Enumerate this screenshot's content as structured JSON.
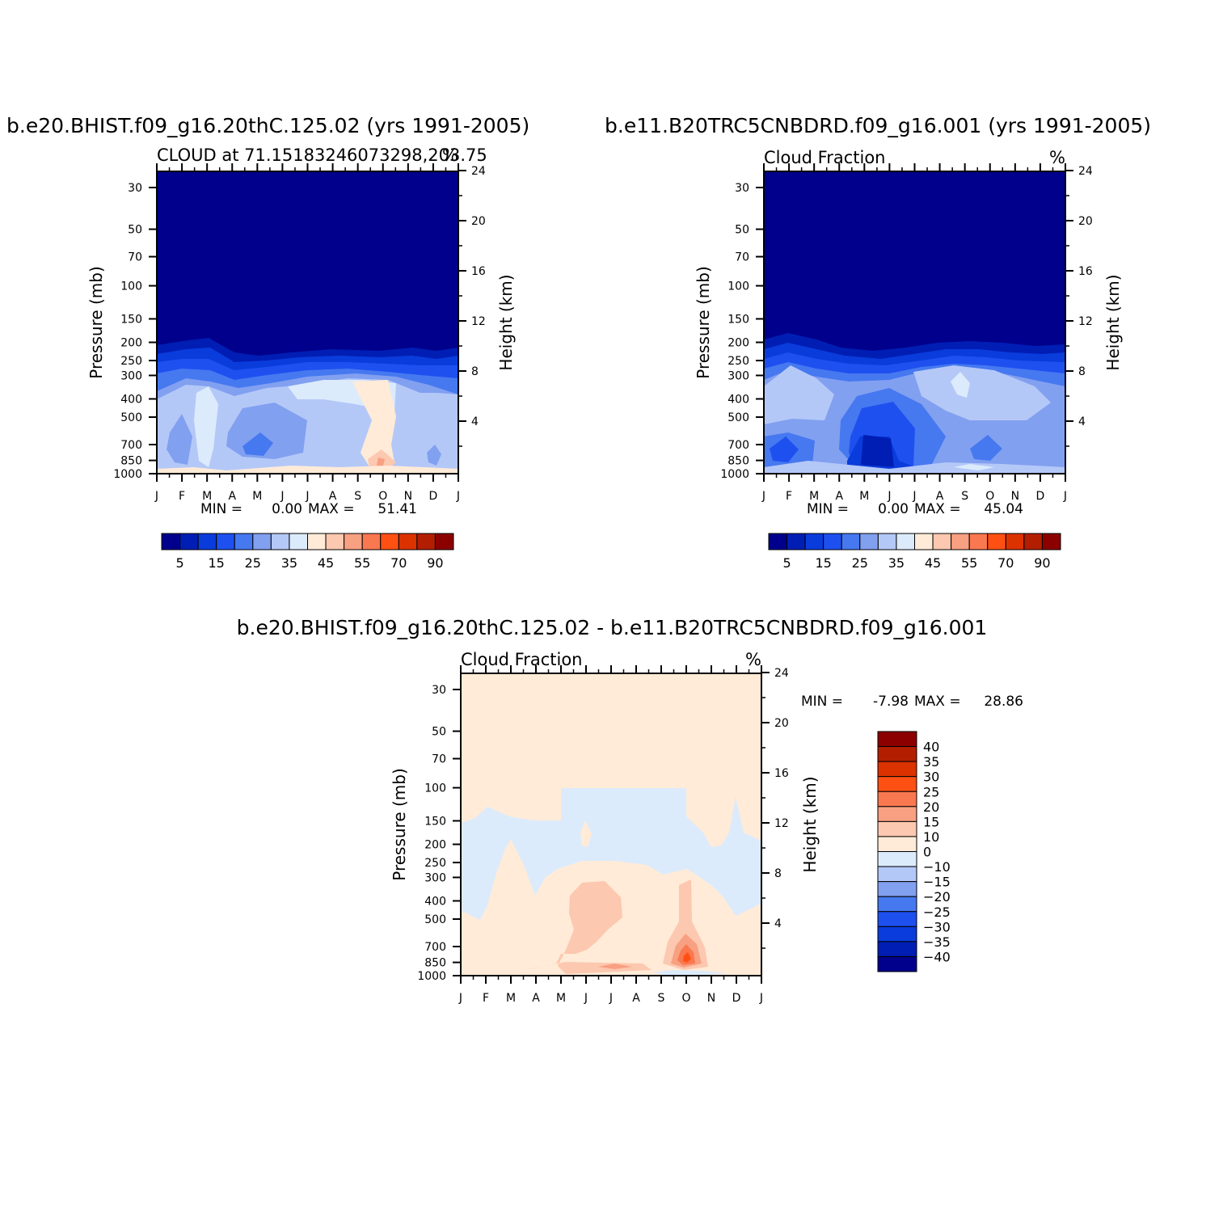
{
  "chart_data": [
    {
      "type": "contour",
      "title": "b.e20.BHIST.f09_g16.20thC.125.02 (yrs 1991-2005)",
      "subtitle_left": "CLOUD at 71.15183246073298,203.75",
      "subtitle_right": "%",
      "ylabel": "Pressure (mb)",
      "y2label": "Height (km)",
      "x_ticks": [
        "J",
        "F",
        "M",
        "A",
        "M",
        "J",
        "J",
        "A",
        "S",
        "O",
        "N",
        "D",
        "J"
      ],
      "y_ticks": [
        "30",
        "50",
        "70",
        "100",
        "150",
        "200",
        "250",
        "300",
        "400",
        "500",
        "700",
        "850",
        "1000"
      ],
      "y2_ticks": [
        "24",
        "20",
        "16",
        "12",
        "8",
        "4"
      ],
      "min_label": "MIN =",
      "min_value": "0.00",
      "max_label": "MAX =",
      "max_value": "51.41",
      "colorbar_labels": [
        "5",
        "15",
        "25",
        "35",
        "45",
        "55",
        "70",
        "90"
      ],
      "colorbar_colors": [
        "#00008c",
        "#001eb4",
        "#0a3cdc",
        "#1e50f0",
        "#4678f0",
        "#82a0f0",
        "#b4c8f8",
        "#dcebfc",
        "#ffebd7",
        "#fcc8af",
        "#f8a082",
        "#fa7850",
        "#ff5014",
        "#dc3200",
        "#b41e00",
        "#8c0000"
      ],
      "levels": [
        0,
        5,
        10,
        15,
        20,
        25,
        30,
        35,
        40,
        45,
        50,
        55,
        60,
        70,
        80,
        90,
        100
      ]
    },
    {
      "type": "contour",
      "title": "b.e11.B20TRC5CNBDRD.f09_g16.001 (yrs 1991-2005)",
      "subtitle_left": "Cloud Fraction",
      "subtitle_right": "%",
      "ylabel": "Pressure (mb)",
      "y2label": "Height (km)",
      "x_ticks": [
        "J",
        "F",
        "M",
        "A",
        "M",
        "J",
        "J",
        "A",
        "S",
        "O",
        "N",
        "D",
        "J"
      ],
      "y_ticks": [
        "30",
        "50",
        "70",
        "100",
        "150",
        "200",
        "250",
        "300",
        "400",
        "500",
        "700",
        "850",
        "1000"
      ],
      "y2_ticks": [
        "24",
        "20",
        "16",
        "12",
        "8",
        "4"
      ],
      "min_label": "MIN =",
      "min_value": "0.00",
      "max_label": "MAX =",
      "max_value": "45.04",
      "colorbar_labels": [
        "5",
        "15",
        "25",
        "35",
        "45",
        "55",
        "70",
        "90"
      ],
      "levels": [
        0,
        5,
        10,
        15,
        20,
        25,
        30,
        35,
        40,
        45,
        50,
        55,
        60,
        70,
        80,
        90,
        100
      ]
    },
    {
      "type": "contour",
      "title": "b.e20.BHIST.f09_g16.20thC.125.02 - b.e11.B20TRC5CNBDRD.f09_g16.001",
      "subtitle_left": "Cloud Fraction",
      "subtitle_right": "%",
      "ylabel": "Pressure (mb)",
      "y2label": "Height (km)",
      "x_ticks": [
        "J",
        "F",
        "M",
        "A",
        "M",
        "J",
        "J",
        "A",
        "S",
        "O",
        "N",
        "D",
        "J"
      ],
      "y_ticks": [
        "30",
        "50",
        "70",
        "100",
        "150",
        "200",
        "250",
        "300",
        "400",
        "500",
        "700",
        "850",
        "1000"
      ],
      "y2_ticks": [
        "24",
        "20",
        "16",
        "12",
        "8",
        "4"
      ],
      "min_label": "MIN =",
      "min_value": "-7.98",
      "max_label": "MAX =",
      "max_value": "28.86",
      "colorbar_labels": [
        "40",
        "35",
        "30",
        "25",
        "20",
        "15",
        "10",
        "0",
        "−10",
        "−15",
        "−20",
        "−25",
        "−30",
        "−35",
        "−40"
      ],
      "colorbar_colors": [
        "#8c0000",
        "#b41e00",
        "#dc3200",
        "#ff5014",
        "#fa7850",
        "#f8a082",
        "#fcc8af",
        "#ffebd7",
        "#dcebfc",
        "#b4c8f8",
        "#82a0f0",
        "#4678f0",
        "#1e50f0",
        "#0a3cdc",
        "#001eb4",
        "#00008c"
      ],
      "levels": [
        -40,
        -35,
        -30,
        -25,
        -20,
        -15,
        -10,
        0,
        10,
        15,
        20,
        25,
        30,
        35,
        40
      ]
    }
  ]
}
